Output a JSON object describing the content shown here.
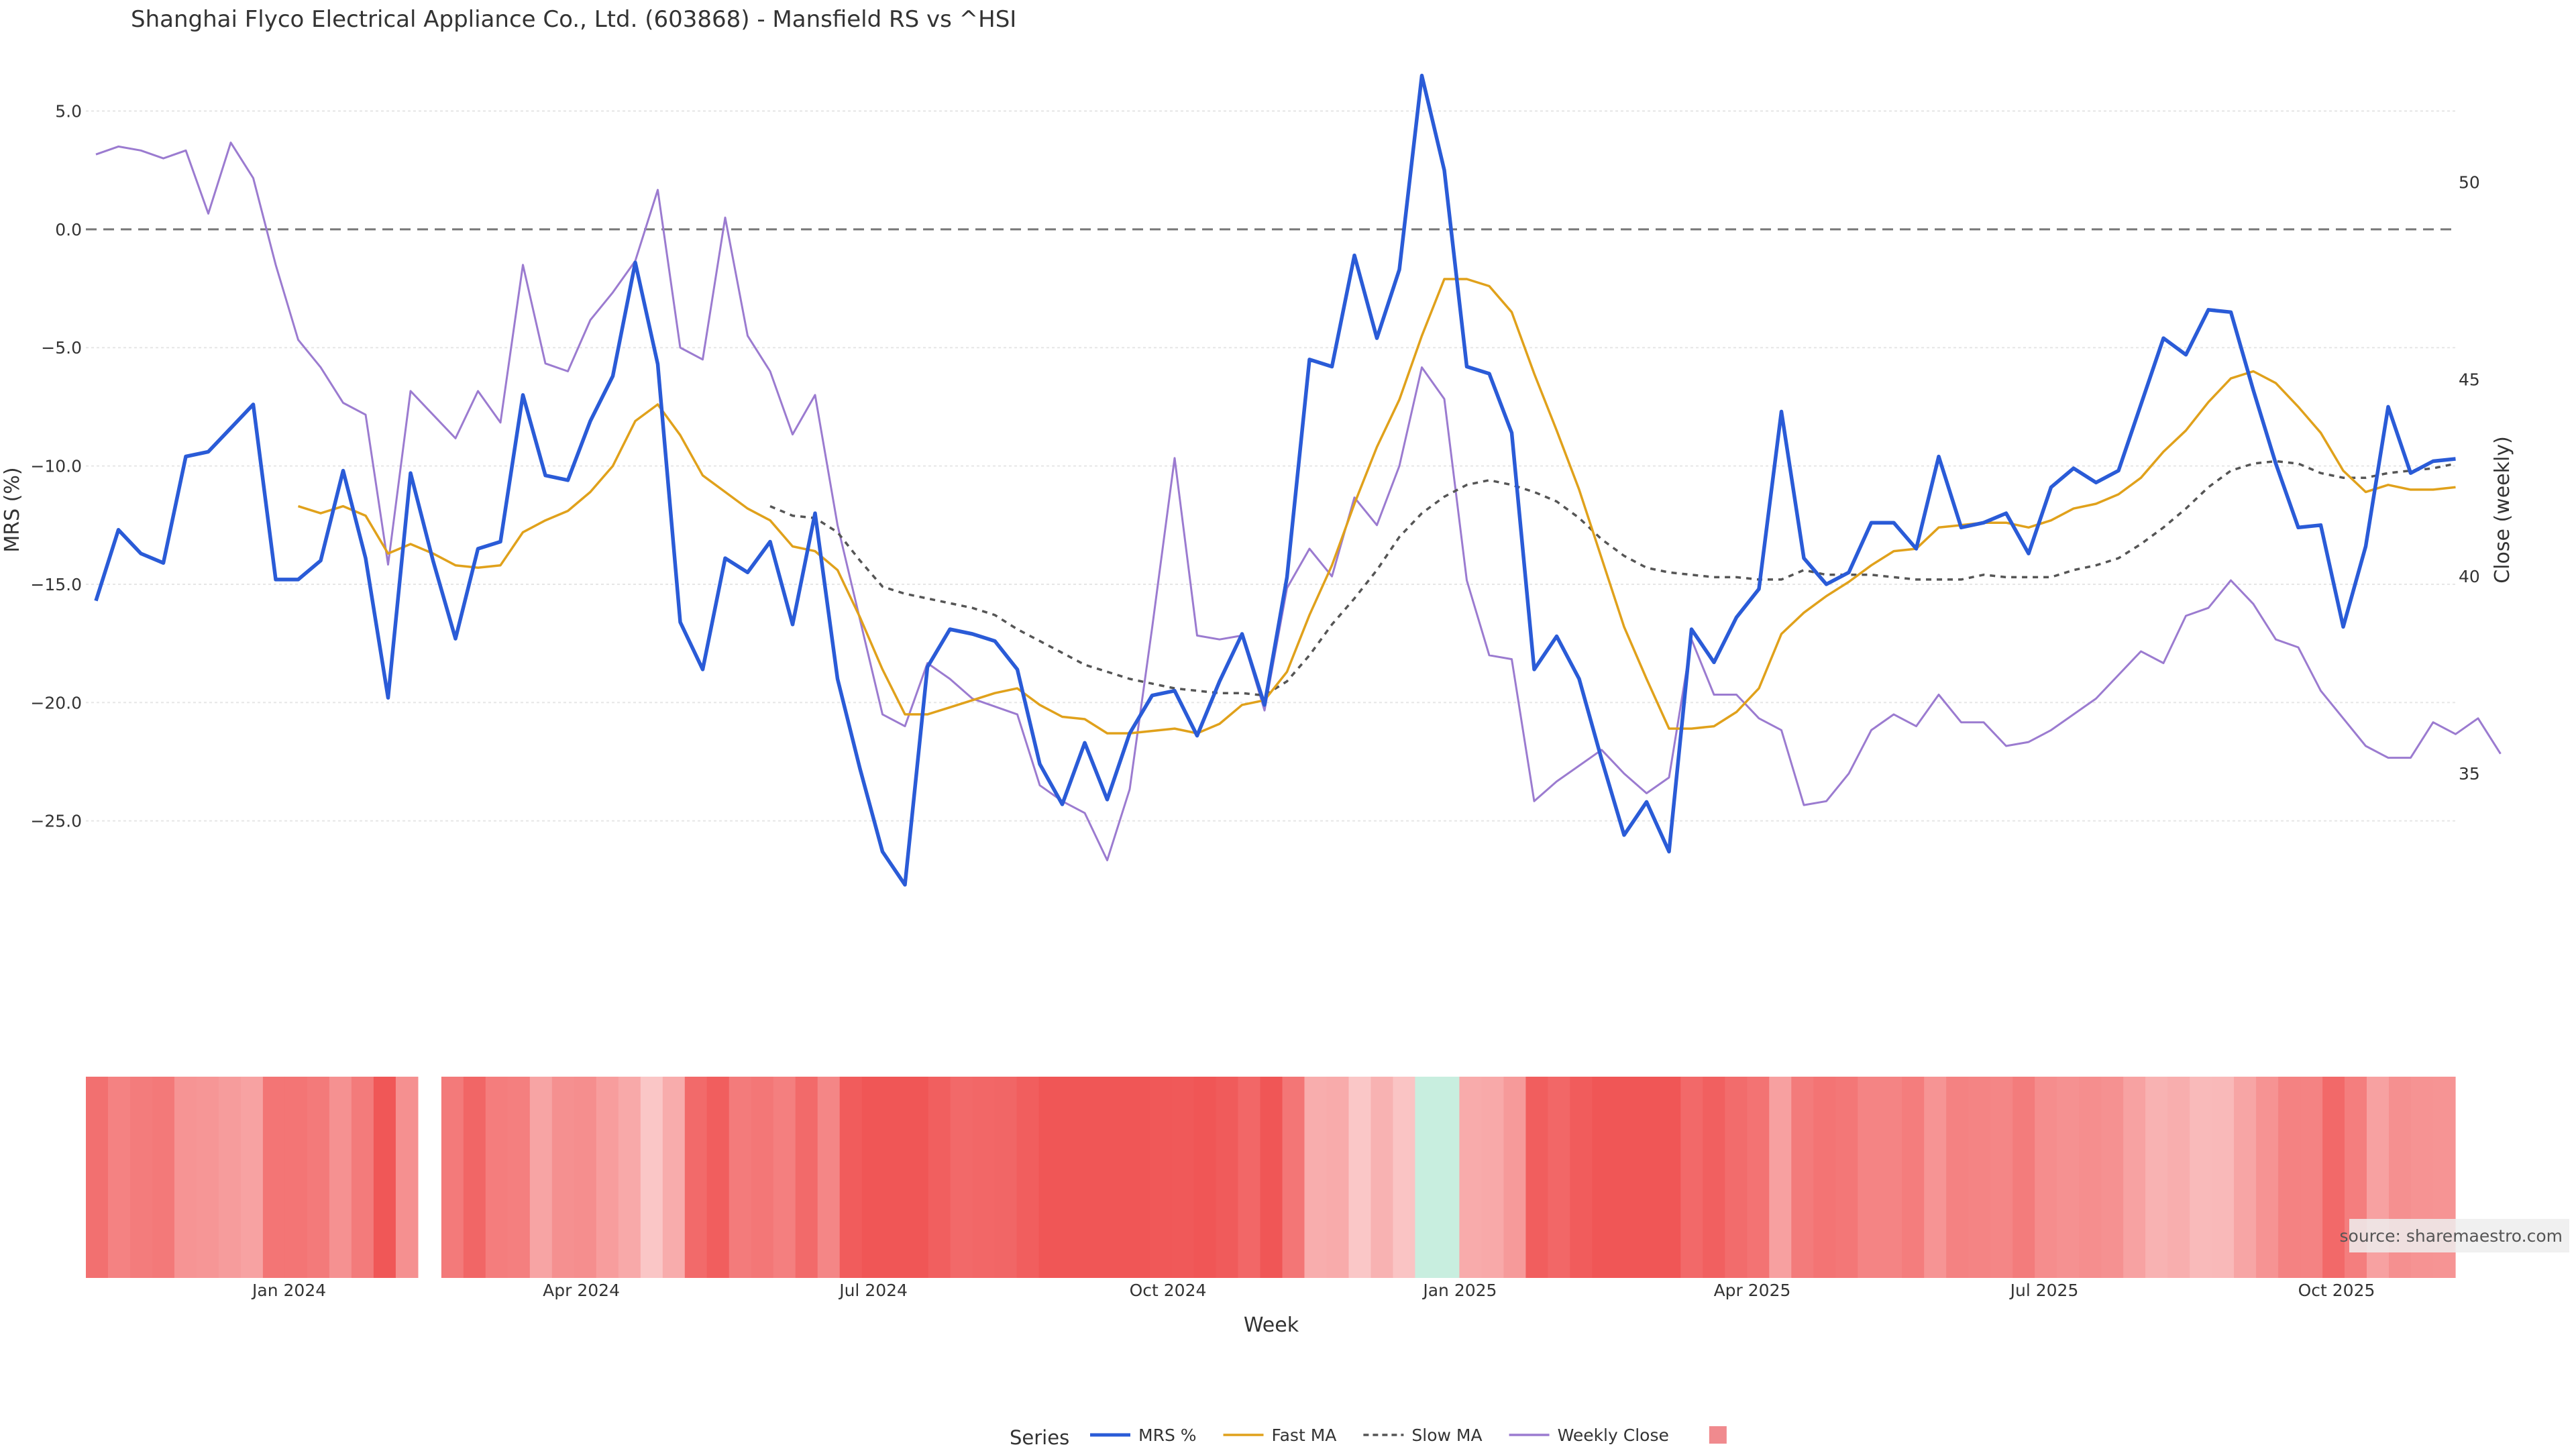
{
  "chart_data": {
    "type": "line",
    "title": "Shanghai Flyco Electrical Appliance Co., Ltd. (603868) - Mansfield RS vs ^HSI",
    "xlabel": "Week",
    "ylabel_left": "MRS (%)",
    "ylabel_right": "Close (weekly)",
    "ylim_left": [
      -30,
      7
    ],
    "ylim_right": [
      30.8,
      53.0
    ],
    "y_ticks_left": [
      5.0,
      0.0,
      -5.0,
      -10.0,
      -15.0,
      -20.0,
      -25.0
    ],
    "y_tick_labels_left": [
      "5.0",
      "0.0",
      "−5.0",
      "−10.0",
      "−15.0",
      "−20.0",
      "−25.0"
    ],
    "y_ticks_right": [
      50,
      45,
      40,
      35
    ],
    "y_tick_labels_right": [
      "50",
      "45",
      "40",
      "35"
    ],
    "x_tick_labels": [
      "Jan 2024",
      "Apr 2024",
      "Jul 2024",
      "Oct 2024",
      "Jan 2025",
      "Apr 2025",
      "Jul 2025",
      "Oct 2025"
    ],
    "x_tick_weeks": [
      8.6,
      21.6,
      34.6,
      47.7,
      60.7,
      73.7,
      86.7,
      99.7
    ],
    "zero_line": 0,
    "grid": "horizontal",
    "legend_title": "Series",
    "legend_position": "bottom-center",
    "source_note": "source: sharemaestro.com",
    "n_weeks": 106,
    "series": [
      {
        "name": "MRS %",
        "axis": "left",
        "color": "#2a5bd7",
        "style": "solid",
        "values": [
          -15.7,
          -12.7,
          -13.7,
          -14.1,
          -9.6,
          -9.4,
          -8.4,
          -7.4,
          -14.8,
          -14.8,
          -14.0,
          -10.2,
          -13.9,
          -19.8,
          -10.3,
          -14.0,
          -17.3,
          -13.5,
          -13.2,
          -7.0,
          -10.4,
          -10.6,
          -8.1,
          -6.2,
          -1.4,
          -5.7,
          -16.6,
          -18.6,
          -13.9,
          -14.5,
          -13.2,
          -16.7,
          -12.0,
          -19.0,
          -22.8,
          -26.3,
          -27.7,
          -18.5,
          -16.9,
          -17.1,
          -17.4,
          -18.6,
          -22.6,
          -24.3,
          -21.7,
          -24.1,
          -21.3,
          -19.7,
          -19.5,
          -21.4,
          -19.1,
          -17.1,
          -20.1,
          -14.7,
          -5.5,
          -5.8,
          -1.1,
          -4.6,
          -1.7,
          6.5,
          2.5,
          -5.8,
          -6.1,
          -8.6,
          -18.6,
          -17.2,
          -19.0,
          -22.4,
          -25.6,
          -24.2,
          -26.3,
          -16.9,
          -18.3,
          -16.4,
          -15.2,
          -7.7,
          -13.9,
          -15.0,
          -14.5,
          -12.4,
          -12.4,
          -13.5,
          -9.6,
          -12.6,
          -12.4,
          -12.0,
          -13.7,
          -10.9,
          -10.1,
          -10.7,
          -10.2,
          -7.4,
          -4.6,
          -5.3,
          -3.4,
          -3.5,
          -6.8,
          -9.9,
          -12.6,
          -12.5,
          -16.8,
          -13.4,
          -7.5,
          -10.3,
          -9.8,
          -9.7
        ]
      },
      {
        "name": "Fast MA",
        "axis": "left",
        "color": "#e0a11b",
        "style": "solid",
        "values": [
          null,
          null,
          null,
          null,
          null,
          null,
          null,
          null,
          null,
          -11.7,
          -12.0,
          -11.7,
          -12.1,
          -13.7,
          -13.3,
          -13.7,
          -14.2,
          -14.3,
          -14.2,
          -12.8,
          -12.3,
          -11.9,
          -11.1,
          -10.0,
          -8.1,
          -7.4,
          -8.7,
          -10.4,
          -11.1,
          -11.8,
          -12.3,
          -13.4,
          -13.6,
          -14.4,
          -16.4,
          -18.6,
          -20.5,
          -20.5,
          -20.2,
          -19.9,
          -19.6,
          -19.4,
          -20.1,
          -20.6,
          -20.7,
          -21.3,
          -21.3,
          -21.2,
          -21.1,
          -21.3,
          -20.9,
          -20.1,
          -19.9,
          -18.7,
          -16.3,
          -14.2,
          -11.6,
          -9.2,
          -7.2,
          -4.5,
          -2.1,
          -2.1,
          -2.4,
          -3.5,
          -6.1,
          -8.5,
          -11.0,
          -13.9,
          -16.8,
          -19.0,
          -21.1,
          -21.1,
          -21.0,
          -20.4,
          -19.4,
          -17.1,
          -16.2,
          -15.5,
          -14.9,
          -14.2,
          -13.6,
          -13.5,
          -12.6,
          -12.5,
          -12.4,
          -12.4,
          -12.6,
          -12.3,
          -11.8,
          -11.6,
          -11.2,
          -10.5,
          -9.4,
          -8.5,
          -7.3,
          -6.3,
          -6.0,
          -6.5,
          -7.5,
          -8.6,
          -10.2,
          -11.1,
          -10.8,
          -11.0,
          -11.0,
          -10.9
        ]
      },
      {
        "name": "Slow MA",
        "axis": "left",
        "color": "#555555",
        "style": "dashed",
        "values": [
          null,
          null,
          null,
          null,
          null,
          null,
          null,
          null,
          null,
          null,
          null,
          null,
          null,
          null,
          null,
          null,
          null,
          null,
          null,
          null,
          null,
          null,
          null,
          null,
          null,
          null,
          null,
          null,
          null,
          null,
          -11.7,
          -12.1,
          -12.2,
          -12.8,
          -14.0,
          -15.1,
          -15.4,
          -15.6,
          -15.8,
          -16.0,
          -16.3,
          -16.9,
          -17.4,
          -17.9,
          -18.4,
          -18.7,
          -19.0,
          -19.2,
          -19.4,
          -19.5,
          -19.6,
          -19.6,
          -19.7,
          -19.1,
          -18.0,
          -16.7,
          -15.6,
          -14.4,
          -13.0,
          -12.0,
          -11.3,
          -10.8,
          -10.6,
          -10.8,
          -11.1,
          -11.5,
          -12.2,
          -13.1,
          -13.8,
          -14.3,
          -14.5,
          -14.6,
          -14.7,
          -14.7,
          -14.8,
          -14.8,
          -14.4,
          -14.6,
          -14.6,
          -14.6,
          -14.7,
          -14.8,
          -14.8,
          -14.8,
          -14.6,
          -14.7,
          -14.7,
          -14.7,
          -14.4,
          -14.2,
          -13.9,
          -13.3,
          -12.6,
          -11.8,
          -10.9,
          -10.2,
          -9.9,
          -9.8,
          -9.9,
          -10.3,
          -10.5,
          -10.5,
          -10.3,
          -10.2,
          -10.1,
          -9.9
        ]
      },
      {
        "name": "Weekly Close",
        "axis": "right",
        "color": "#9b7bd0",
        "style": "solid",
        "values": [
          50.7,
          50.9,
          50.8,
          50.6,
          50.8,
          49.2,
          51.0,
          50.1,
          47.9,
          46.0,
          45.3,
          44.4,
          44.1,
          40.3,
          44.7,
          44.1,
          43.5,
          44.7,
          43.9,
          47.9,
          45.4,
          45.2,
          46.5,
          47.2,
          48.0,
          49.8,
          45.8,
          45.5,
          49.1,
          46.1,
          45.2,
          43.6,
          44.6,
          41.3,
          38.9,
          36.5,
          36.2,
          37.8,
          37.4,
          36.9,
          36.7,
          36.5,
          34.7,
          34.3,
          34.0,
          32.8,
          34.6,
          38.7,
          43.0,
          38.5,
          38.4,
          38.5,
          36.6,
          39.7,
          40.7,
          40.0,
          42.0,
          41.3,
          42.8,
          45.3,
          44.5,
          39.9,
          38.0,
          37.9,
          34.3,
          34.8,
          35.2,
          35.6,
          35.0,
          34.5,
          34.9,
          38.4,
          37.0,
          37.0,
          36.4,
          36.1,
          34.2,
          34.3,
          35.0,
          36.1,
          36.5,
          36.2,
          37.0,
          36.3,
          36.3,
          35.7,
          35.8,
          36.1,
          36.5,
          36.9,
          37.5,
          38.1,
          37.8,
          39.0,
          39.2,
          39.9,
          39.3,
          38.4,
          38.2,
          37.1,
          36.4,
          35.7,
          35.4,
          35.4,
          36.3,
          36.0,
          36.4,
          35.5
        ]
      }
    ],
    "heatmap": {
      "name": "",
      "description_values_are_mrs_percent": false,
      "weeks_from": 0,
      "gap_after_week": 14,
      "colormap_low": "#f05656",
      "colormap_high": "#c8eedf"
    }
  }
}
